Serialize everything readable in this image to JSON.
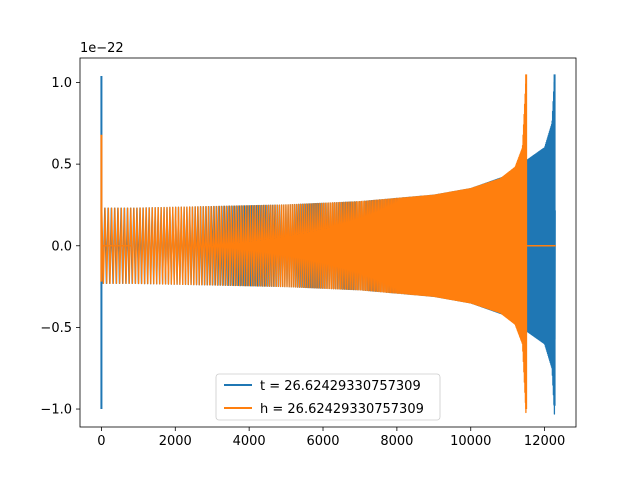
{
  "chart_data": {
    "type": "line",
    "title": "",
    "xlabel": "",
    "ylabel": "",
    "y_offset_label": "1e−22",
    "xlim": [
      -580,
      12850
    ],
    "ylim": [
      -1.11,
      1.15
    ],
    "x_ticks": [
      0,
      2000,
      4000,
      6000,
      8000,
      10000,
      12000
    ],
    "x_tick_labels": [
      "0",
      "2000",
      "4000",
      "6000",
      "8000",
      "10000",
      "12000"
    ],
    "y_ticks": [
      -1.0,
      -0.5,
      0.0,
      0.5,
      1.0
    ],
    "y_tick_labels": [
      "−1.0",
      "−0.5",
      "0.0",
      "0.5",
      "1.0"
    ],
    "grid": false,
    "legend_position": "lower-center",
    "series": [
      {
        "name": "t = 26.62429330757309",
        "color": "#1f77b4",
        "start_spike": {
          "x": 0,
          "min": -1.0,
          "max": 1.04
        },
        "zero_segments": [
          [
            0,
            800
          ]
        ],
        "envelope": [
          [
            0,
            0.0
          ],
          [
            10,
            0.23
          ],
          [
            800,
            0.23
          ],
          [
            3000,
            0.24
          ],
          [
            5000,
            0.25
          ],
          [
            7000,
            0.27
          ],
          [
            9000,
            0.31
          ],
          [
            10000,
            0.35
          ],
          [
            11000,
            0.43
          ],
          [
            11500,
            0.52
          ],
          [
            12000,
            0.6
          ],
          [
            12200,
            0.75
          ],
          [
            12270,
            1.05
          ],
          [
            12290,
            0.0
          ]
        ],
        "end_spike": {
          "x": 12270,
          "min": -0.98,
          "max": 1.05
        },
        "tail_zero": [
          12290,
          12300
        ]
      },
      {
        "name": "h = 26.62429330757309",
        "color": "#ff7f0e",
        "start_spike": {
          "x": 0,
          "min": -0.22,
          "max": 0.68
        },
        "zero_segments": [
          [
            0,
            800
          ]
        ],
        "envelope": [
          [
            10,
            0.23
          ],
          [
            800,
            0.23
          ],
          [
            3000,
            0.24
          ],
          [
            5000,
            0.25
          ],
          [
            7000,
            0.27
          ],
          [
            9000,
            0.31
          ],
          [
            10000,
            0.35
          ],
          [
            10800,
            0.41
          ],
          [
            11200,
            0.48
          ],
          [
            11400,
            0.6
          ],
          [
            11500,
            1.05
          ],
          [
            11510,
            0.0
          ]
        ],
        "end_spike": {
          "x": 11500,
          "min": -1.0,
          "max": 1.05
        },
        "tail_zero": [
          11510,
          12300
        ]
      }
    ]
  }
}
